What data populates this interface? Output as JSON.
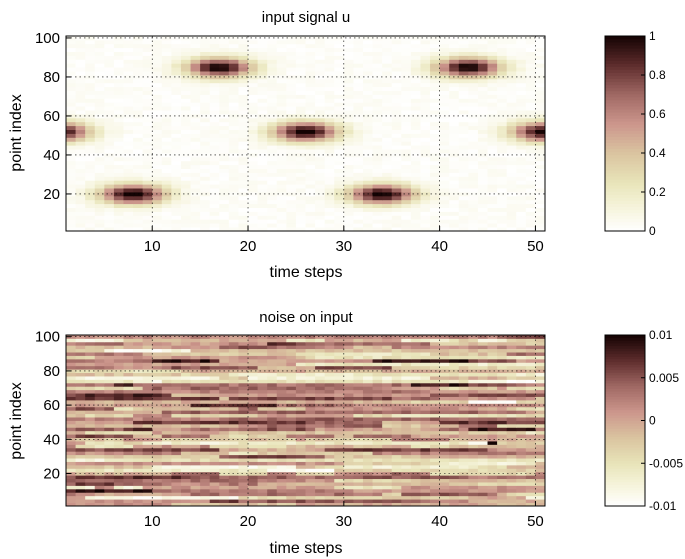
{
  "chart_data": [
    {
      "type": "heatmap",
      "title": "input signal u",
      "xlabel": "time steps",
      "ylabel": "point index",
      "xlim": [
        1,
        51
      ],
      "ylim": [
        1,
        101
      ],
      "xticks": [
        "10",
        "20",
        "30",
        "40",
        "50"
      ],
      "yticks": [
        "20",
        "40",
        "60",
        "80",
        "100"
      ],
      "grid": true,
      "colormap": "pink (reversed)",
      "clim": [
        0,
        1
      ],
      "colorbar_ticks": [
        "0",
        "0.2",
        "0.4",
        "0.6",
        "0.8",
        "1"
      ],
      "pulses": [
        {
          "t": 8,
          "index": 20,
          "peak": 1.0
        },
        {
          "t": 17,
          "index": 85,
          "peak": 1.0
        },
        {
          "t": 26,
          "index": 52,
          "peak": 1.0
        },
        {
          "t": 34,
          "index": 20,
          "peak": 1.0
        },
        {
          "t": 43,
          "index": 85,
          "peak": 1.0
        },
        {
          "t": 51,
          "index": 52,
          "peak": 1.0
        },
        {
          "t": 0,
          "index": 52,
          "peak": 1.0
        }
      ]
    },
    {
      "type": "heatmap",
      "title": "noise on input",
      "xlabel": "time steps",
      "ylabel": "point index",
      "xlim": [
        1,
        51
      ],
      "ylim": [
        1,
        101
      ],
      "xticks": [
        "10",
        "20",
        "30",
        "40",
        "50"
      ],
      "yticks": [
        "20",
        "40",
        "60",
        "80",
        "100"
      ],
      "grid": true,
      "colormap": "pink (reversed)",
      "clim": [
        -0.01,
        0.01
      ],
      "colorbar_ticks": [
        "-0.01",
        "-0.005",
        "0",
        "0.005",
        "0.01"
      ]
    }
  ],
  "colors": {
    "white": "#ffffff",
    "light": "#f4f2d6",
    "yellowish": "#e6e2b8",
    "tan": "#d6b9a0",
    "rose": "#c48a88",
    "mauve": "#8e5a5a",
    "dark": "#3a0f0f",
    "black": "#120303"
  }
}
